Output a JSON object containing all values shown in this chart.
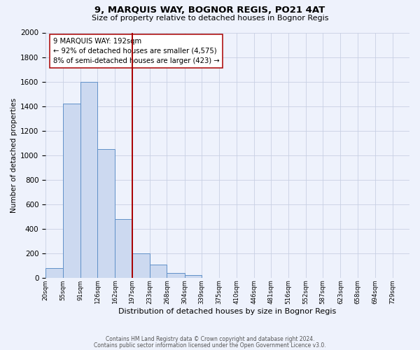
{
  "title": "9, MARQUIS WAY, BOGNOR REGIS, PO21 4AT",
  "subtitle": "Size of property relative to detached houses in Bognor Regis",
  "xlabel": "Distribution of detached houses by size in Bognor Regis",
  "ylabel": "Number of detached properties",
  "bin_labels": [
    "20sqm",
    "55sqm",
    "91sqm",
    "126sqm",
    "162sqm",
    "197sqm",
    "233sqm",
    "268sqm",
    "304sqm",
    "339sqm",
    "375sqm",
    "410sqm",
    "446sqm",
    "481sqm",
    "516sqm",
    "552sqm",
    "587sqm",
    "623sqm",
    "658sqm",
    "694sqm",
    "729sqm"
  ],
  "bin_edges": [
    20,
    55,
    91,
    126,
    162,
    197,
    233,
    268,
    304,
    339,
    375,
    410,
    446,
    481,
    516,
    552,
    587,
    623,
    658,
    694,
    729
  ],
  "bar_heights": [
    80,
    1420,
    1600,
    1050,
    480,
    200,
    105,
    40,
    20,
    0,
    0,
    0,
    0,
    0,
    0,
    0,
    0,
    0,
    0,
    0
  ],
  "bar_color": "#ccd9f0",
  "bar_edge_color": "#6090c8",
  "vline_x": 197,
  "vline_color": "#aa0000",
  "ylim": [
    0,
    2000
  ],
  "yticks": [
    0,
    200,
    400,
    600,
    800,
    1000,
    1200,
    1400,
    1600,
    1800,
    2000
  ],
  "annotation_line1": "9 MARQUIS WAY: 192sqm",
  "annotation_line2": "← 92% of detached houses are smaller (4,575)",
  "annotation_line3": "8% of semi-detached houses are larger (423) →",
  "footer1": "Contains HM Land Registry data © Crown copyright and database right 2024.",
  "footer2": "Contains public sector information licensed under the Open Government Licence v3.0.",
  "background_color": "#eef2fc",
  "grid_color": "#c8d0e4"
}
